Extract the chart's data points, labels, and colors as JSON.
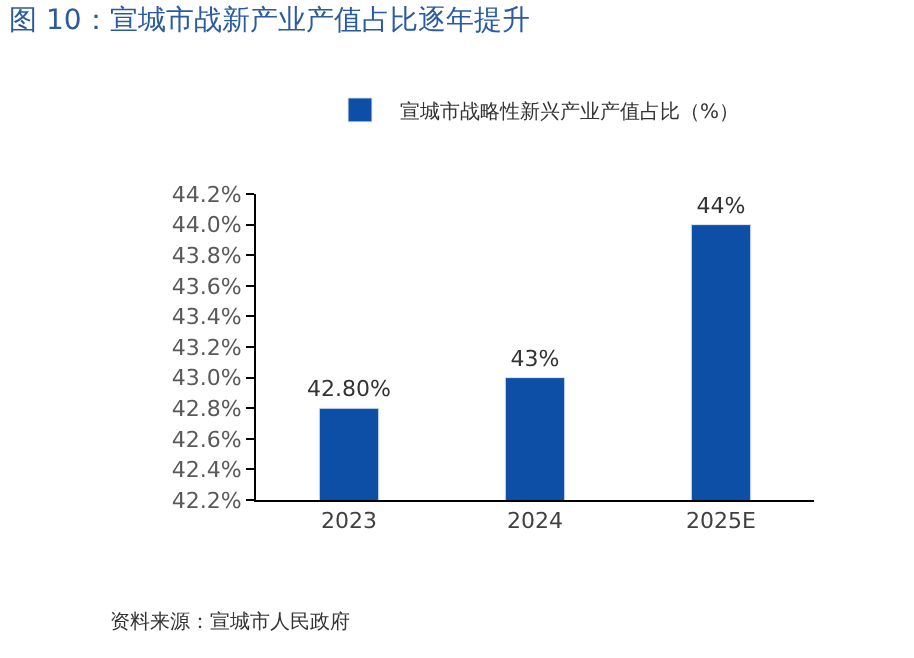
{
  "chart_data": {
    "type": "bar",
    "title": "图 10：宣城市战新产业产值占比逐年提升",
    "categories": [
      "2023",
      "2024",
      "2025E"
    ],
    "series": [
      {
        "name": "宣城市战略性新兴产业产值占比（%）",
        "color": "#0d4ea6",
        "values": [
          42.8,
          43.0,
          44.0
        ],
        "value_labels": [
          "42.80%",
          "43%",
          "44%"
        ]
      }
    ],
    "ylim": [
      42.2,
      44.2
    ],
    "yticks": [
      {
        "value": 42.2,
        "label": "42.2%"
      },
      {
        "value": 42.4,
        "label": "42.4%"
      },
      {
        "value": 42.6,
        "label": "42.6%"
      },
      {
        "value": 42.8,
        "label": "42.8%"
      },
      {
        "value": 43.0,
        "label": "43.0%"
      },
      {
        "value": 43.2,
        "label": "43.2%"
      },
      {
        "value": 43.4,
        "label": "43.4%"
      },
      {
        "value": 43.6,
        "label": "43.6%"
      },
      {
        "value": 43.8,
        "label": "43.8%"
      },
      {
        "value": 44.0,
        "label": "44.0%"
      },
      {
        "value": 44.2,
        "label": "44.2%"
      }
    ],
    "legend": "top",
    "annotations": [
      "资料来源：宣城市人民政府"
    ]
  }
}
